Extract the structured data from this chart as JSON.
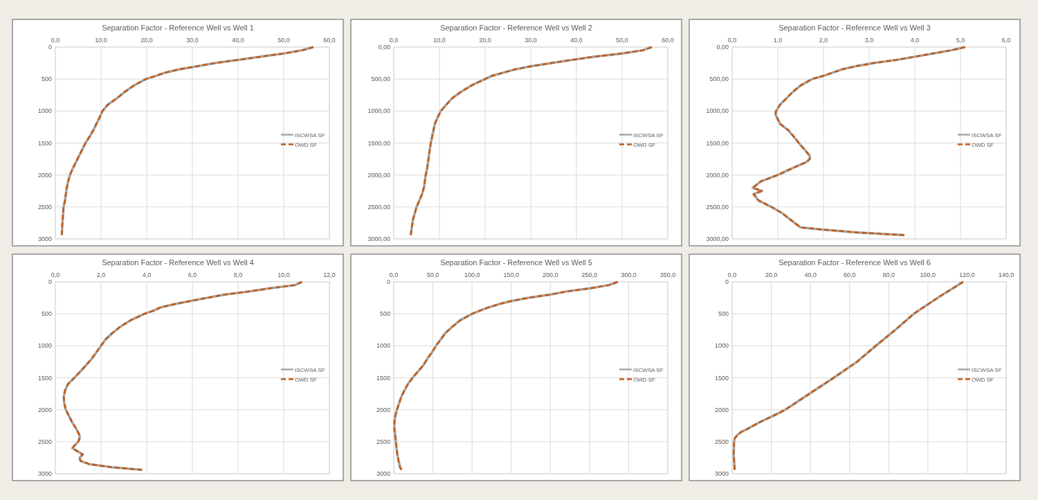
{
  "chart_data": [
    {
      "type": "line",
      "title": "Separation Factor - Reference Well vs Well 1",
      "xlim": [
        0,
        60
      ],
      "xticks": [
        {
          "value": 0,
          "label": "0,0"
        },
        {
          "value": 10,
          "label": "10,0"
        },
        {
          "value": 20,
          "label": "20,0"
        },
        {
          "value": 30,
          "label": "30,0"
        },
        {
          "value": 40,
          "label": "40,0"
        },
        {
          "value": 50,
          "label": "50,0"
        },
        {
          "value": 60,
          "label": "60,0"
        }
      ],
      "ylim": [
        3000,
        0
      ],
      "yticks": [
        0,
        500,
        1000,
        1500,
        2000,
        2500,
        3000
      ],
      "grid": true,
      "legend": "right",
      "series": [
        {
          "name": "ISCWSA SF",
          "color": "#a6a6a6",
          "line_style": "solid",
          "x": [
            56.5,
            54,
            50,
            45,
            40,
            35,
            31,
            27,
            24,
            22,
            19.8,
            18.5,
            17.2,
            15.2,
            13.5,
            11.5,
            10.3,
            9.7,
            9,
            8.3,
            7.5,
            6.6,
            5.9,
            5.2,
            4.5,
            3.8,
            3.2,
            2.8,
            2.5,
            2.3,
            2.1,
            1.8,
            1.7,
            1.6,
            1.5,
            1.45,
            1.4
          ],
          "values": [
            0,
            50,
            100,
            150,
            200,
            250,
            300,
            350,
            400,
            450,
            500,
            550,
            600,
            700,
            800,
            900,
            1000,
            1100,
            1200,
            1300,
            1400,
            1500,
            1600,
            1700,
            1800,
            1900,
            2000,
            2100,
            2200,
            2300,
            2400,
            2500,
            2600,
            2700,
            2800,
            2900,
            2940
          ]
        },
        {
          "name": "OWD SF",
          "color": "#c55a11",
          "line_style": "dashed",
          "x": [
            56.5,
            54,
            50,
            45,
            40,
            35,
            31,
            27,
            24,
            22,
            19.8,
            18.5,
            17.2,
            15.2,
            13.5,
            11.5,
            10.3,
            9.7,
            9,
            8.3,
            7.5,
            6.6,
            5.9,
            5.2,
            4.5,
            3.8,
            3.2,
            2.8,
            2.5,
            2.3,
            2.1,
            1.8,
            1.7,
            1.6,
            1.5,
            1.45,
            1.4
          ],
          "values": [
            0,
            50,
            100,
            150,
            200,
            250,
            300,
            350,
            400,
            450,
            500,
            550,
            600,
            700,
            800,
            900,
            1000,
            1100,
            1200,
            1300,
            1400,
            1500,
            1600,
            1700,
            1800,
            1900,
            2000,
            2100,
            2200,
            2300,
            2400,
            2500,
            2600,
            2700,
            2800,
            2900,
            2940
          ]
        }
      ]
    },
    {
      "type": "line",
      "title": "Separation Factor - Reference Well vs Well 2",
      "xlim": [
        0,
        60
      ],
      "xticks": [
        {
          "value": 0,
          "label": "0,0"
        },
        {
          "value": 10,
          "label": "10,0"
        },
        {
          "value": 20,
          "label": "20,0"
        },
        {
          "value": 30,
          "label": "30,0"
        },
        {
          "value": 40,
          "label": "40,0"
        },
        {
          "value": 50,
          "label": "50,0"
        },
        {
          "value": 60,
          "label": "60,0"
        }
      ],
      "ylim": [
        3000,
        0
      ],
      "yticks": [
        {
          "value": 0,
          "label": "0,00"
        },
        {
          "value": 500,
          "label": "500,00"
        },
        {
          "value": 1000,
          "label": "1000,00"
        },
        {
          "value": 1500,
          "label": "1500,00"
        },
        {
          "value": 2000,
          "label": "2000,00"
        },
        {
          "value": 2500,
          "label": "2500,00"
        },
        {
          "value": 3000,
          "label": "3000,00"
        }
      ],
      "grid": true,
      "legend": "right",
      "series": [
        {
          "name": "ISCWSA SF",
          "color": "#a6a6a6",
          "line_style": "solid",
          "x": [
            56.5,
            54.5,
            50,
            44,
            39,
            34.5,
            30,
            26.5,
            24,
            21.5,
            20,
            17,
            14.7,
            12.8,
            11.5,
            10.3,
            9.6,
            9,
            8.7,
            8.4,
            8.1,
            7.9,
            7.7,
            7.5,
            7.3,
            7,
            6.8,
            6.6,
            6.2,
            5.6,
            5,
            4.6,
            4.2,
            4,
            3.8,
            3.7
          ],
          "values": [
            0,
            50,
            100,
            150,
            200,
            250,
            300,
            350,
            400,
            450,
            500,
            600,
            700,
            800,
            900,
            1000,
            1100,
            1200,
            1300,
            1400,
            1500,
            1600,
            1700,
            1800,
            1900,
            2000,
            2100,
            2200,
            2300,
            2400,
            2500,
            2600,
            2700,
            2800,
            2900,
            2940
          ]
        },
        {
          "name": "OWD SF",
          "color": "#c55a11",
          "line_style": "dashed",
          "x": [
            56.5,
            54.5,
            50,
            44,
            39,
            34.5,
            30,
            26.5,
            24,
            21.5,
            20,
            17,
            14.7,
            12.8,
            11.5,
            10.3,
            9.6,
            9,
            8.7,
            8.4,
            8.1,
            7.9,
            7.7,
            7.5,
            7.3,
            7,
            6.8,
            6.6,
            6.2,
            5.6,
            5,
            4.6,
            4.2,
            4,
            3.8,
            3.7
          ],
          "values": [
            0,
            50,
            100,
            150,
            200,
            250,
            300,
            350,
            400,
            450,
            500,
            600,
            700,
            800,
            900,
            1000,
            1100,
            1200,
            1300,
            1400,
            1500,
            1600,
            1700,
            1800,
            1900,
            2000,
            2100,
            2200,
            2300,
            2400,
            2500,
            2600,
            2700,
            2800,
            2900,
            2940
          ]
        }
      ]
    },
    {
      "type": "line",
      "title": "Separation Factor - Reference Well vs Well 3",
      "xlim": [
        0,
        6
      ],
      "xticks": [
        {
          "value": 0,
          "label": "0,0"
        },
        {
          "value": 1,
          "label": "1,0"
        },
        {
          "value": 2,
          "label": "2,0"
        },
        {
          "value": 3,
          "label": "3,0"
        },
        {
          "value": 4,
          "label": "4,0"
        },
        {
          "value": 5,
          "label": "5,0"
        },
        {
          "value": 6,
          "label": "6,0"
        }
      ],
      "ylim": [
        3000,
        0
      ],
      "yticks": [
        {
          "value": 0,
          "label": "0,00"
        },
        {
          "value": 500,
          "label": "500,00"
        },
        {
          "value": 1000,
          "label": "1000,00"
        },
        {
          "value": 1500,
          "label": "1500,00"
        },
        {
          "value": 2000,
          "label": "2000,00"
        },
        {
          "value": 2500,
          "label": "2500,00"
        },
        {
          "value": 3000,
          "label": "3000,00"
        }
      ],
      "grid": true,
      "legend": "right",
      "series": [
        {
          "name": "ISCWSA SF",
          "color": "#a6a6a6",
          "line_style": "solid",
          "x": [
            5.1,
            4.8,
            4.4,
            4,
            3.6,
            3.1,
            2.7,
            2.4,
            2.2,
            2,
            1.75,
            1.5,
            1.33,
            1.19,
            1.05,
            0.96,
            0.95,
            0.98,
            1.05,
            1.23,
            1.35,
            1.46,
            1.58,
            1.7,
            1.7,
            1.62,
            1.3,
            1,
            0.63,
            0.45,
            0.65,
            0.47,
            0.58,
            0.86,
            1.1,
            1.28,
            1.46,
            1.5,
            1.93,
            2.75,
            3.77
          ],
          "values": [
            0,
            50,
            100,
            150,
            200,
            250,
            300,
            350,
            400,
            450,
            500,
            600,
            700,
            800,
            900,
            1000,
            1050,
            1100,
            1200,
            1300,
            1400,
            1500,
            1600,
            1700,
            1750,
            1800,
            1900,
            2000,
            2100,
            2200,
            2250,
            2300,
            2400,
            2500,
            2600,
            2700,
            2800,
            2820,
            2850,
            2900,
            2940
          ]
        },
        {
          "name": "OWD SF",
          "color": "#c55a11",
          "line_style": "dashed",
          "x": [
            5.1,
            4.8,
            4.4,
            4,
            3.6,
            3.1,
            2.7,
            2.4,
            2.2,
            2,
            1.75,
            1.5,
            1.33,
            1.19,
            1.05,
            0.96,
            0.95,
            0.98,
            1.05,
            1.23,
            1.35,
            1.46,
            1.58,
            1.7,
            1.7,
            1.62,
            1.3,
            1,
            0.63,
            0.45,
            0.65,
            0.47,
            0.58,
            0.86,
            1.1,
            1.28,
            1.46,
            1.5,
            1.93,
            2.75,
            3.77
          ],
          "values": [
            0,
            50,
            100,
            150,
            200,
            250,
            300,
            350,
            400,
            450,
            500,
            600,
            700,
            800,
            900,
            1000,
            1050,
            1100,
            1200,
            1300,
            1400,
            1500,
            1600,
            1700,
            1750,
            1800,
            1900,
            2000,
            2100,
            2200,
            2250,
            2300,
            2400,
            2500,
            2600,
            2700,
            2800,
            2820,
            2850,
            2900,
            2940
          ]
        }
      ]
    },
    {
      "type": "line",
      "title": "Separation Factor - Reference Well vs Well 4",
      "xlim": [
        0,
        12
      ],
      "xticks": [
        {
          "value": 0,
          "label": "0,0"
        },
        {
          "value": 2,
          "label": "2,0"
        },
        {
          "value": 4,
          "label": "4,0"
        },
        {
          "value": 6,
          "label": "6,0"
        },
        {
          "value": 8,
          "label": "8,0"
        },
        {
          "value": 10,
          "label": "10,0"
        },
        {
          "value": 12,
          "label": "12,0"
        }
      ],
      "ylim": [
        3000,
        0
      ],
      "yticks": [
        0,
        500,
        1000,
        1500,
        2000,
        2500,
        3000
      ],
      "grid": true,
      "legend": "right",
      "series": [
        {
          "name": "ISCWSA SF",
          "color": "#a6a6a6",
          "line_style": "solid",
          "x": [
            10.8,
            10.5,
            9.4,
            8.5,
            7.4,
            6.65,
            5.9,
            5.2,
            4.6,
            4.3,
            3.9,
            3.3,
            2.85,
            2.5,
            2.2,
            2,
            1.6,
            1.1,
            0.83,
            0.55,
            0.42,
            0.37,
            0.39,
            0.46,
            0.6,
            0.74,
            0.92,
            1.06,
            1.06,
            1,
            0.74,
            0.97,
            1.2,
            1.06,
            1.1,
            1.48,
            2.5,
            3.8
          ],
          "values": [
            0,
            50,
            100,
            150,
            200,
            250,
            300,
            350,
            400,
            450,
            500,
            600,
            700,
            800,
            900,
            1000,
            1200,
            1400,
            1500,
            1600,
            1700,
            1800,
            1900,
            2000,
            2100,
            2200,
            2300,
            2400,
            2450,
            2500,
            2600,
            2650,
            2700,
            2750,
            2800,
            2850,
            2900,
            2940
          ]
        },
        {
          "name": "OWD SF",
          "color": "#c55a11",
          "line_style": "dashed",
          "x": [
            10.8,
            10.5,
            9.4,
            8.5,
            7.4,
            6.65,
            5.9,
            5.2,
            4.6,
            4.3,
            3.9,
            3.3,
            2.85,
            2.5,
            2.2,
            2,
            1.6,
            1.1,
            0.83,
            0.55,
            0.42,
            0.37,
            0.39,
            0.46,
            0.6,
            0.74,
            0.92,
            1.06,
            1.06,
            1,
            0.74,
            0.97,
            1.2,
            1.06,
            1.1,
            1.48,
            2.5,
            3.8
          ],
          "values": [
            0,
            50,
            100,
            150,
            200,
            250,
            300,
            350,
            400,
            450,
            500,
            600,
            700,
            800,
            900,
            1000,
            1200,
            1400,
            1500,
            1600,
            1700,
            1800,
            1900,
            2000,
            2100,
            2200,
            2300,
            2400,
            2450,
            2500,
            2600,
            2650,
            2700,
            2750,
            2800,
            2850,
            2900,
            2940
          ]
        }
      ]
    },
    {
      "type": "line",
      "title": "Separation Factor - Reference Well vs Well 5",
      "xlim": [
        0,
        350
      ],
      "xticks": [
        {
          "value": 0,
          "label": "0,0"
        },
        {
          "value": 50,
          "label": "50,0"
        },
        {
          "value": 100,
          "label": "100,0"
        },
        {
          "value": 150,
          "label": "150,0"
        },
        {
          "value": 200,
          "label": "200,0"
        },
        {
          "value": 250,
          "label": "250,0"
        },
        {
          "value": 300,
          "label": "300,0"
        },
        {
          "value": 350,
          "label": "350,0"
        }
      ],
      "ylim": [
        3000,
        0
      ],
      "yticks": [
        0,
        500,
        1000,
        1500,
        2000,
        2500,
        3000
      ],
      "grid": true,
      "legend": "right",
      "series": [
        {
          "name": "ISCWSA SF",
          "color": "#a6a6a6",
          "line_style": "solid",
          "x": [
            286,
            275,
            251,
            221,
            199,
            172,
            150,
            134,
            121,
            110,
            100,
            85,
            75,
            66,
            60,
            54,
            49,
            43,
            38,
            31,
            24,
            18,
            13.6,
            9.5,
            6.8,
            4,
            1.9,
            0.8,
            0.8,
            1.9,
            2.7,
            3.5,
            4.6,
            6.2,
            8.1,
            10
          ],
          "values": [
            0,
            50,
            100,
            150,
            200,
            250,
            300,
            350,
            400,
            450,
            500,
            600,
            700,
            800,
            900,
            1000,
            1100,
            1200,
            1300,
            1400,
            1500,
            1600,
            1700,
            1800,
            1900,
            2000,
            2100,
            2200,
            2300,
            2400,
            2500,
            2600,
            2700,
            2800,
            2900,
            2940
          ]
        },
        {
          "name": "OWD SF",
          "color": "#c55a11",
          "line_style": "dashed",
          "x": [
            286,
            275,
            251,
            221,
            199,
            172,
            150,
            134,
            121,
            110,
            100,
            85,
            75,
            66,
            60,
            54,
            49,
            43,
            38,
            31,
            24,
            18,
            13.6,
            9.5,
            6.8,
            4,
            1.9,
            0.8,
            0.8,
            1.9,
            2.7,
            3.5,
            4.6,
            6.2,
            8.1,
            10
          ],
          "values": [
            0,
            50,
            100,
            150,
            200,
            250,
            300,
            350,
            400,
            450,
            500,
            600,
            700,
            800,
            900,
            1000,
            1100,
            1200,
            1300,
            1400,
            1500,
            1600,
            1700,
            1800,
            1900,
            2000,
            2100,
            2200,
            2300,
            2400,
            2500,
            2600,
            2700,
            2800,
            2900,
            2940
          ]
        }
      ]
    },
    {
      "type": "line",
      "title": "Separation Factor - Reference Well vs Well 6",
      "xlim": [
        0,
        140
      ],
      "xticks": [
        {
          "value": 0,
          "label": "0,0"
        },
        {
          "value": 20,
          "label": "20,0"
        },
        {
          "value": 40,
          "label": "40,0"
        },
        {
          "value": 60,
          "label": "60,0"
        },
        {
          "value": 80,
          "label": "80,0"
        },
        {
          "value": 100,
          "label": "100,0"
        },
        {
          "value": 120,
          "label": "120,0"
        },
        {
          "value": 140,
          "label": "140,0"
        }
      ],
      "ylim": [
        3000,
        0
      ],
      "yticks": [
        0,
        500,
        1000,
        1500,
        2000,
        2500,
        3000
      ],
      "grid": true,
      "legend": "right",
      "series": [
        {
          "name": "ISCWSA SF",
          "color": "#a6a6a6",
          "line_style": "solid",
          "x": [
            118,
            105,
            92.8,
            83.4,
            73.4,
            63.8,
            51.9,
            39.5,
            27.1,
            20.7,
            13.7,
            7.8,
            4.5,
            2.5,
            1.3,
            1,
            0.8,
            1.3
          ],
          "values": [
            0,
            250,
            500,
            750,
            1000,
            1250,
            1500,
            1750,
            2000,
            2100,
            2200,
            2300,
            2350,
            2400,
            2450,
            2500,
            2700,
            2940
          ]
        },
        {
          "name": "OWD SF",
          "color": "#c55a11",
          "line_style": "dashed",
          "x": [
            118,
            105,
            92.8,
            83.4,
            73.4,
            63.8,
            51.9,
            39.5,
            27.1,
            20.7,
            13.7,
            7.8,
            4.5,
            2.5,
            1.3,
            1,
            0.8,
            1.3
          ],
          "values": [
            0,
            250,
            500,
            750,
            1000,
            1250,
            1500,
            1750,
            2000,
            2100,
            2200,
            2300,
            2350,
            2400,
            2450,
            2500,
            2700,
            2940
          ]
        }
      ]
    }
  ]
}
